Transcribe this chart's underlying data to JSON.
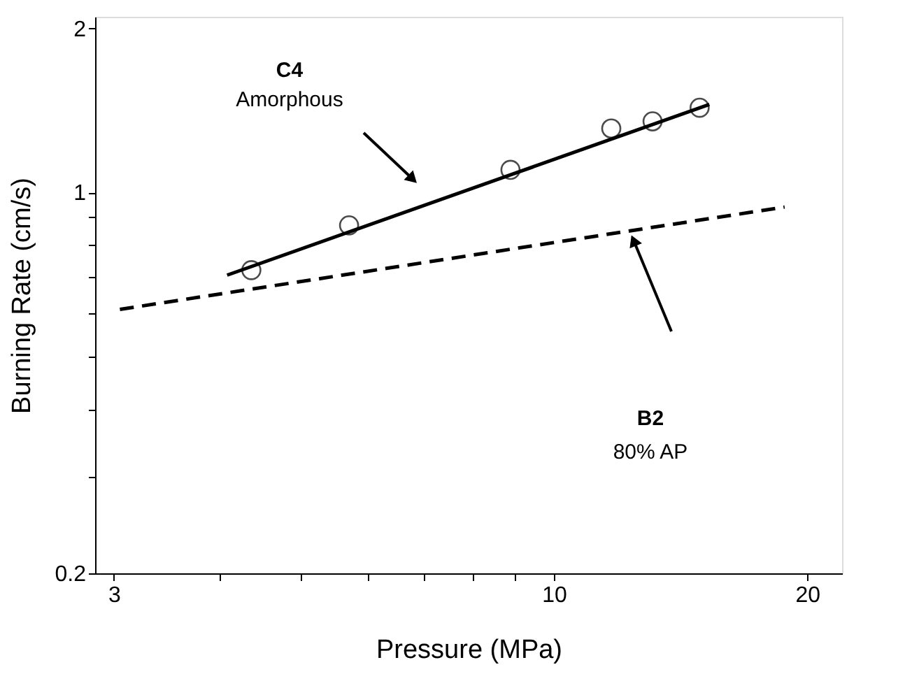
{
  "chart_data": {
    "type": "scatter",
    "xlabel": "Pressure (MPa)",
    "ylabel": "Burning Rate (cm/s)",
    "log": "xy",
    "grid": false,
    "xlim": [
      2.85,
      22
    ],
    "ylim": [
      0.2,
      2.1
    ],
    "xticks": [
      3,
      {
        "value": 4,
        "label": null
      },
      {
        "value": 5,
        "label": null
      },
      {
        "value": 6,
        "label": null
      },
      {
        "value": 7,
        "label": null
      },
      {
        "value": 8,
        "label": null
      },
      {
        "value": 9,
        "label": null
      },
      10,
      20
    ],
    "yticks": [
      0.2,
      {
        "value": 0.3,
        "label": null
      },
      {
        "value": 0.4,
        "label": null
      },
      {
        "value": 0.5,
        "label": null
      },
      {
        "value": 0.6,
        "label": null
      },
      {
        "value": 0.7,
        "label": null
      },
      {
        "value": 0.8,
        "label": null
      },
      {
        "value": 0.9,
        "label": null
      },
      1,
      2
    ],
    "series": [
      {
        "marker": "circle",
        "color": "#000000",
        "x": [
          4.37,
          5.71,
          8.88,
          11.7,
          13.1,
          14.9
        ],
        "values": [
          0.72,
          0.87,
          1.1,
          1.31,
          1.35,
          1.43
        ]
      },
      {
        "type": "line",
        "line_style": "solid",
        "color": "#000000",
        "x": [
          4.09,
          15.3
        ],
        "values": [
          0.705,
          1.45
        ]
      },
      {
        "type": "line",
        "line_style": "dashed",
        "color": "#000000",
        "x": [
          3.05,
          18.8
        ],
        "values": [
          0.61,
          0.94
        ]
      }
    ],
    "annotations": [
      "C4",
      "Amorphous",
      "B2",
      "80% AP"
    ]
  }
}
